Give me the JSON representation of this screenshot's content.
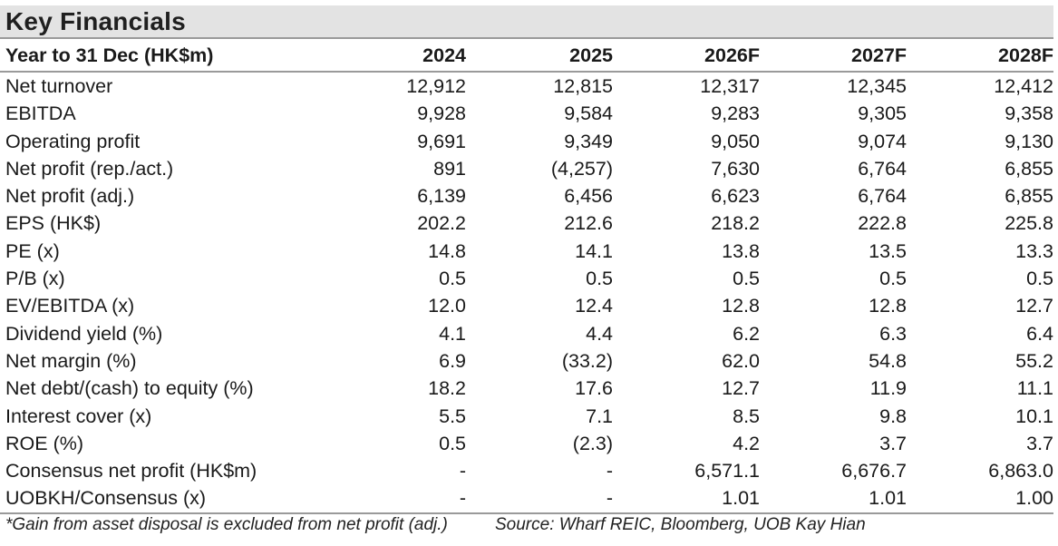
{
  "title": "Key Financials",
  "headers": [
    "Year to 31 Dec (HK$m)",
    "2024",
    "2025",
    "2026F",
    "2027F",
    "2028F"
  ],
  "rows": [
    {
      "label": "Net turnover",
      "values": [
        "12,912",
        "12,815",
        "12,317",
        "12,345",
        "12,412"
      ]
    },
    {
      "label": "EBITDA",
      "values": [
        "9,928",
        "9,584",
        "9,283",
        "9,305",
        "9,358"
      ]
    },
    {
      "label": "Operating profit",
      "values": [
        "9,691",
        "9,349",
        "9,050",
        "9,074",
        "9,130"
      ]
    },
    {
      "label": "Net profit (rep./act.)",
      "values": [
        "891",
        "(4,257)",
        "7,630",
        "6,764",
        "6,855"
      ]
    },
    {
      "label": "Net profit (adj.)",
      "values": [
        "6,139",
        "6,456",
        "6,623",
        "6,764",
        "6,855"
      ]
    },
    {
      "label": "EPS  (HK$)",
      "values": [
        "202.2",
        "212.6",
        "218.2",
        "222.8",
        "225.8"
      ]
    },
    {
      "label": "PE (x)",
      "values": [
        "14.8",
        "14.1",
        "13.8",
        "13.5",
        "13.3"
      ]
    },
    {
      "label": "P/B (x)",
      "values": [
        "0.5",
        "0.5",
        "0.5",
        "0.5",
        "0.5"
      ]
    },
    {
      "label": "EV/EBITDA (x)",
      "values": [
        "12.0",
        "12.4",
        "12.8",
        "12.8",
        "12.7"
      ]
    },
    {
      "label": "Dividend yield (%)",
      "values": [
        "4.1",
        "4.4",
        "6.2",
        "6.3",
        "6.4"
      ]
    },
    {
      "label": "Net margin (%)",
      "values": [
        "6.9",
        "(33.2)",
        "62.0",
        "54.8",
        "55.2"
      ]
    },
    {
      "label": "Net debt/(cash) to equity (%)",
      "values": [
        "18.2",
        "17.6",
        "12.7",
        "11.9",
        "11.1"
      ]
    },
    {
      "label": "Interest cover (x)",
      "values": [
        "5.5",
        "7.1",
        "8.5",
        "9.8",
        "10.1"
      ]
    },
    {
      "label": "ROE (%)",
      "values": [
        "0.5",
        "(2.3)",
        "4.2",
        "3.7",
        "3.7"
      ]
    },
    {
      "label": "Consensus net profit  (HK$m)",
      "values": [
        "-",
        "-",
        "6,571.1",
        "6,676.7",
        "6,863.0"
      ]
    },
    {
      "label": "UOBKH/Consensus (x)",
      "values": [
        "-",
        "-",
        "1.01",
        "1.01",
        "1.00"
      ]
    }
  ],
  "footnote": "*Gain from asset disposal is excluded from net profit (adj.)",
  "source": "Source: Wharf REIC, Bloomberg, UOB Kay Hian"
}
